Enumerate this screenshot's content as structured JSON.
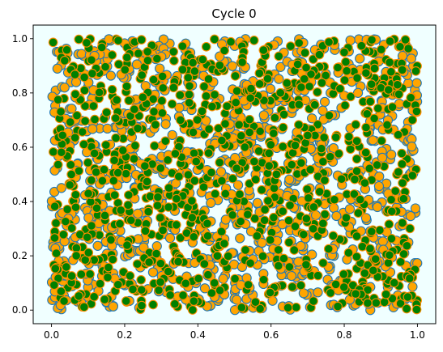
{
  "chart_data": {
    "type": "scatter",
    "title": "Cycle 0",
    "xlabel": "",
    "ylabel": "",
    "xlim": [
      -0.05,
      1.05
    ],
    "ylim": [
      -0.05,
      1.05
    ],
    "x_ticks": [
      "0.0",
      "0.2",
      "0.4",
      "0.6",
      "0.8",
      "1.0"
    ],
    "y_ticks": [
      "0.0",
      "0.2",
      "0.4",
      "0.6",
      "0.8",
      "1.0"
    ],
    "grid": false,
    "legend": "none",
    "point_count": 1000,
    "distribution": "uniform random points in the unit square",
    "colors": {
      "plot_background": "#f0ffff",
      "marker_fill_a": "#ffa500",
      "marker_edge_a": "#1f77b4",
      "marker_fill_b": "#008000",
      "marker_edge_b": "#ff8c00"
    }
  }
}
